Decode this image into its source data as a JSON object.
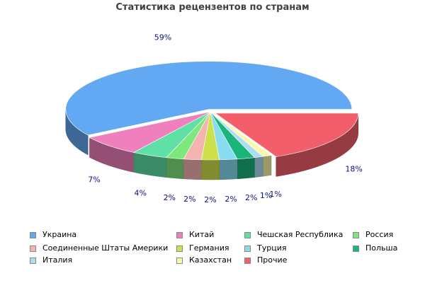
{
  "chart_data": {
    "type": "pie",
    "title": "Статистика рецензентов по странам",
    "legend_position": "bottom",
    "slices": [
      {
        "name": "Украина",
        "value": 59,
        "label": "59%",
        "color": "#62A8F2"
      },
      {
        "name": "Китай",
        "value": 7,
        "label": "7%",
        "color": "#F07FBD"
      },
      {
        "name": "Чешская Республика",
        "value": 4,
        "label": "4%",
        "color": "#5FE0A7"
      },
      {
        "name": "Россия",
        "value": 2,
        "label": "2%",
        "color": "#7EE77E"
      },
      {
        "name": "Соединенные Штаты Америки",
        "value": 2,
        "label": "2%",
        "color": "#F4B4AF"
      },
      {
        "name": "Германия",
        "value": 2,
        "label": "2%",
        "color": "#CEE14C"
      },
      {
        "name": "Турция",
        "value": 2,
        "label": "2%",
        "color": "#88DCEF"
      },
      {
        "name": "Польша",
        "value": 2,
        "label": "2%",
        "color": "#1BB47B"
      },
      {
        "name": "Италия",
        "value": 1,
        "label": "1%",
        "color": "#ABDDF6"
      },
      {
        "name": "Казахстан",
        "value": 1,
        "label": "1%",
        "color": "#FBF6A9"
      },
      {
        "name": "Прочие",
        "value": 18,
        "label": "18%",
        "color": "#F25F6B"
      }
    ]
  }
}
